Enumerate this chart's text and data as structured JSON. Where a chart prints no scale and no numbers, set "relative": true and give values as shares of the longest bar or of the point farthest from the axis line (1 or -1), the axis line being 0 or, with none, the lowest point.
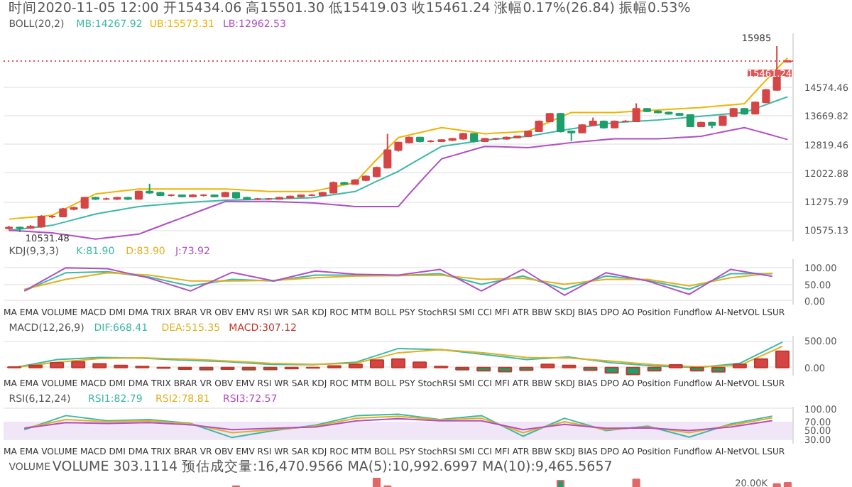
{
  "chart_data": [
    {
      "type": "candlestick",
      "title": "时间2020-11-05 12:00 开15434.06 高15501.30 低15419.03 收15461.24 涨幅0.17%(26.84) 振幅0.53%",
      "subtitle": "BOLL(20,2)",
      "log": "y",
      "grid": "y",
      "tick_labels": "y",
      "categories": [
        null,
        null,
        null,
        null,
        null,
        null,
        null,
        null,
        null,
        null,
        null,
        null,
        null,
        null,
        null,
        null,
        null,
        null,
        null,
        null,
        null,
        null,
        null,
        null,
        null,
        null,
        null,
        null,
        null,
        null,
        null,
        null,
        null,
        null,
        null,
        null,
        null,
        null,
        null,
        null,
        null,
        null,
        null,
        null,
        null,
        null,
        null,
        null,
        null,
        null,
        null,
        null,
        null,
        null,
        null,
        null,
        null,
        null,
        null,
        null,
        null,
        null,
        null,
        null,
        null,
        null,
        null,
        null,
        null,
        null,
        null,
        null,
        null
      ],
      "ohlc": [
        [
          10620,
          10680,
          10590,
          10640
        ],
        [
          10640,
          10660,
          10531.48,
          10634
        ],
        [
          10634,
          10700,
          10610,
          10664
        ],
        [
          10664,
          10940,
          10640,
          10906
        ],
        [
          10906,
          10940,
          10870,
          10906
        ],
        [
          10906,
          11120,
          10890,
          11092
        ],
        [
          11092,
          11150,
          11060,
          11123
        ],
        [
          11123,
          11400,
          11100,
          11377
        ],
        [
          11377,
          11400,
          11320,
          11345
        ],
        [
          11345,
          11380,
          11320,
          11345
        ],
        [
          11345,
          11400,
          11320,
          11377
        ],
        [
          11377,
          11400,
          11320,
          11345
        ],
        [
          11345,
          11560,
          11330,
          11537
        ],
        [
          11537,
          11740,
          11480,
          11504
        ],
        [
          11504,
          11530,
          11420,
          11441
        ],
        [
          11441,
          11470,
          11410,
          11441
        ],
        [
          11441,
          11460,
          11390,
          11409
        ],
        [
          11409,
          11470,
          11390,
          11441
        ],
        [
          11441,
          11470,
          11410,
          11441
        ],
        [
          11441,
          11460,
          11390,
          11409
        ],
        [
          11409,
          11530,
          11390,
          11504
        ],
        [
          11504,
          11520,
          11350,
          11377
        ],
        [
          11377,
          11400,
          11320,
          11345
        ],
        [
          11345,
          11370,
          11320,
          11345
        ],
        [
          11345,
          11370,
          11320,
          11345
        ],
        [
          11345,
          11400,
          11330,
          11377
        ],
        [
          11377,
          11430,
          11360,
          11409
        ],
        [
          11409,
          11460,
          11390,
          11441
        ],
        [
          11441,
          11470,
          11420,
          11441
        ],
        [
          11441,
          11530,
          11420,
          11504
        ],
        [
          11504,
          11800,
          11490,
          11767
        ],
        [
          11767,
          11790,
          11710,
          11734
        ],
        [
          11734,
          11860,
          11720,
          11833
        ],
        [
          11833,
          11960,
          11810,
          11934
        ],
        [
          11934,
          12200,
          11910,
          12171
        ],
        [
          12171,
          13131,
          12150,
          12659
        ],
        [
          12659,
          12900,
          12620,
          12876
        ],
        [
          12876,
          13050,
          12850,
          13021
        ],
        [
          13021,
          13040,
          12880,
          12912
        ],
        [
          12912,
          12950,
          12880,
          12912
        ],
        [
          12912,
          12970,
          12890,
          12948
        ],
        [
          12948,
          13010,
          12920,
          12985
        ],
        [
          12985,
          13160,
          12960,
          13131
        ],
        [
          13131,
          13150,
          12880,
          12912
        ],
        [
          12912,
          13010,
          12890,
          12985
        ],
        [
          12985,
          13010,
          12950,
          12985
        ],
        [
          12985,
          13050,
          12960,
          13021
        ],
        [
          13021,
          13080,
          13000,
          13058
        ],
        [
          13058,
          13230,
          13040,
          13206
        ],
        [
          13206,
          13530,
          13190,
          13505
        ],
        [
          13505,
          13760,
          13480,
          13736
        ],
        [
          13736,
          13760,
          13170,
          13206
        ],
        [
          13206,
          13230,
          12920,
          13168
        ],
        [
          13168,
          13420,
          13150,
          13391
        ],
        [
          13391,
          13620,
          13370,
          13505
        ],
        [
          13505,
          13530,
          13290,
          13317
        ],
        [
          13317,
          13530,
          13300,
          13505
        ],
        [
          13505,
          13540,
          13480,
          13505
        ],
        [
          13505,
          14060,
          13490,
          13890
        ],
        [
          13890,
          13910,
          13790,
          13813
        ],
        [
          13813,
          13840,
          13750,
          13775
        ],
        [
          13775,
          13800,
          13710,
          13736
        ],
        [
          13736,
          13760,
          13670,
          13697
        ],
        [
          13697,
          13720,
          13330,
          13354
        ],
        [
          13354,
          13490,
          13330,
          13467
        ],
        [
          13467,
          13490,
          13300,
          13391
        ],
        [
          13391,
          13680,
          13370,
          13659
        ],
        [
          13659,
          13910,
          13640,
          13890
        ],
        [
          13890,
          13910,
          13710,
          13736
        ],
        [
          13736,
          14120,
          13720,
          14092
        ],
        [
          14092,
          14520,
          14070,
          14490
        ],
        [
          14490,
          15985,
          14470,
          15115
        ],
        [
          15434.06,
          15501.3,
          15419.03,
          15461.24
        ]
      ],
      "colors": [
        "#d64545",
        "#1e9e6a",
        "#d64545",
        "#d64545",
        "#d64545",
        "#d64545",
        "#d64545",
        "#d64545",
        "#1e9e6a",
        "#d64545",
        "#d64545",
        "#1e9e6a",
        "#d64545",
        "#1e9e6a",
        "#1e9e6a",
        "#d64545",
        "#1e9e6a",
        "#d64545",
        "#d64545",
        "#1e9e6a",
        "#d64545",
        "#1e9e6a",
        "#1e9e6a",
        "#d64545",
        "#d64545",
        "#d64545",
        "#d64545",
        "#d64545",
        "#d64545",
        "#d64545",
        "#d64545",
        "#1e9e6a",
        "#d64545",
        "#d64545",
        "#d64545",
        "#d64545",
        "#d64545",
        "#d64545",
        "#1e9e6a",
        "#d64545",
        "#d64545",
        "#d64545",
        "#d64545",
        "#1e9e6a",
        "#d64545",
        "#d64545",
        "#d64545",
        "#d64545",
        "#d64545",
        "#d64545",
        "#d64545",
        "#1e9e6a",
        "#1e9e6a",
        "#d64545",
        "#d64545",
        "#1e9e6a",
        "#d64545",
        "#d64545",
        "#d64545",
        "#1e9e6a",
        "#1e9e6a",
        "#1e9e6a",
        "#1e9e6a",
        "#1e9e6a",
        "#d64545",
        "#1e9e6a",
        "#d64545",
        "#d64545",
        "#1e9e6a",
        "#d64545",
        "#d64545",
        "#d64545",
        "#d64545"
      ],
      "series": [
        {
          "type": "line",
          "name": "MB:14267.92",
          "color": "#3cb9a6",
          "values": [
            10575,
            10605,
            10635,
            10665,
            10695,
            10763,
            10832,
            10900,
            10968,
            11015,
            11062,
            11108,
            11155,
            11179,
            11202,
            11226,
            11249,
            11265,
            11281,
            11297,
            11313,
            11321,
            11329,
            11337,
            11345,
            11353,
            11361,
            11369,
            11377,
            11417,
            11457,
            11497,
            11537,
            11670,
            11803,
            11936,
            12069,
            12244,
            12418,
            12593,
            12767,
            12812,
            12858,
            12903,
            12948,
            12976,
            13003,
            13031,
            13058,
            13113,
            13169,
            13224,
            13279,
            13326,
            13373,
            13420,
            13467,
            13486,
            13506,
            13525,
            13544,
            13573,
            13602,
            13630,
            13659,
            13688,
            13717,
            13746,
            13775,
            13898,
            14021,
            14145,
            14267.92
          ]
        },
        {
          "type": "line",
          "name": "UB:15573.31",
          "color": "#f0b400",
          "values": [
            10845,
            10868,
            10891,
            10914,
            10937,
            11071,
            11205,
            11338,
            11472,
            11505,
            11537,
            11570,
            11603,
            11603,
            11603,
            11603,
            11603,
            11603,
            11603,
            11603,
            11603,
            11587,
            11570,
            11554,
            11537,
            11537,
            11537,
            11537,
            11537,
            11595,
            11652,
            11710,
            11767,
            12081,
            12394,
            12708,
            13021,
            13095,
            13169,
            13243,
            13317,
            13271,
            13224,
            13178,
            13131,
            13150,
            13169,
            13187,
            13206,
            13348,
            13491,
            13633,
            13775,
            13775,
            13775,
            13775,
            13775,
            13794,
            13814,
            13833,
            13852,
            13872,
            13891,
            13911,
            13930,
            13960,
            13990,
            14019,
            14049,
            14430,
            14811,
            15192,
            15573.31
          ]
        },
        {
          "type": "line",
          "name": "LB:12962.53",
          "color": "#b04fc4",
          "values": [
            10575,
            10560,
            10545,
            10530,
            10515,
            10479,
            10443,
            10406,
            10370,
            10399,
            10428,
            10456,
            10485,
            10583,
            10680,
            10778,
            10875,
            10977,
            11078,
            11180,
            11281,
            11281,
            11281,
            11281,
            11281,
            11273,
            11265,
            11257,
            11249,
            11226,
            11202,
            11179,
            11155,
            11155,
            11155,
            11155,
            11155,
            11470,
            11784,
            12099,
            12413,
            12502,
            12590,
            12679,
            12767,
            12758,
            12749,
            12740,
            12731,
            12767,
            12803,
            12839,
            12875,
            12903,
            12930,
            12958,
            12985,
            12985,
            12985,
            12985,
            12985,
            13003,
            13022,
            13040,
            13058,
            13123,
            13188,
            13252,
            13317,
            13228,
            13140,
            13051,
            12962.53
          ]
        }
      ],
      "ylim": [
        10300,
        16450
      ],
      "yticks": [
        {
          "value": 10575.13,
          "label": "10575.13"
        },
        {
          "value": 11275.79,
          "label": "11275.79"
        },
        {
          "value": 12022.88,
          "label": "12022.88"
        },
        {
          "value": 12819.46,
          "label": "12819.46"
        },
        {
          "value": 13669.82,
          "label": "13669.82"
        },
        {
          "value": 14574.46,
          "label": "14574.46"
        }
      ],
      "ref_lines": [
        {
          "axis": "y",
          "value": 15461.24,
          "label": "15461.24",
          "color": "#e05555",
          "line_style": "dotted"
        }
      ],
      "annotations": [
        "15985",
        "10531.48"
      ]
    },
    {
      "type": "line",
      "title": "KDJ(9,3,3)",
      "xlabel": "MA EMA VOLUME MACD DMI DMA TRIX BRAR VR OBV EMV RSI WR SAR KDJ ROC MTM BOLL PSY StochRSI SMI CCI MFI ATR BBW SKDJ BIAS DPO AO Position Fundflow AI-NetVOL LSUR",
      "grid": "y",
      "tick_labels": "y",
      "ylim": [
        -11,
        126
      ],
      "categories": [
        null,
        null,
        null,
        null,
        null,
        null,
        null,
        null,
        null,
        null,
        null,
        null,
        null,
        null,
        null,
        null,
        null,
        null,
        null
      ],
      "yticks": [
        {
          "value": 0,
          "label": "0.00"
        },
        {
          "value": 50,
          "label": "50.00"
        },
        {
          "value": 100,
          "label": "100.00"
        }
      ],
      "series": [
        {
          "name": "K:81.90",
          "color": "#3cb9a6",
          "values": [
            30,
            85,
            88,
            72,
            45,
            65,
            60,
            78,
            78,
            76,
            82,
            50,
            75,
            35,
            75,
            62,
            35,
            82,
            81.9
          ]
        },
        {
          "name": "D:83.90",
          "color": "#e0b020",
          "values": [
            35,
            65,
            85,
            78,
            60,
            60,
            62,
            70,
            75,
            76,
            78,
            65,
            68,
            50,
            65,
            65,
            45,
            70,
            83.9
          ]
        },
        {
          "name": "J:73.92",
          "color": "#b04fc4",
          "values": [
            30,
            100,
            97,
            69,
            30,
            86,
            60,
            90,
            80,
            78,
            95,
            30,
            95,
            17,
            85,
            60,
            20,
            95,
            73.92
          ]
        }
      ]
    },
    {
      "type": "bar",
      "title": "MACD(12,26,9)",
      "xlabel": "MA EMA VOLUME MACD DMI DMA TRIX BRAR VR OBV EMV RSI WR SAR KDJ ROC MTM BOLL PSY StochRSI SMI CCI MFI ATR BBW SKDJ BIAS DPO AO Position Fundflow AI-NetVOL LSUR",
      "grid": "y",
      "tick_labels": "y",
      "ylim": [
        -150,
        600
      ],
      "categories": [
        null,
        null,
        null,
        null,
        null,
        null,
        null,
        null,
        null,
        null,
        null,
        null,
        null,
        null,
        null,
        null,
        null,
        null,
        null,
        null,
        null,
        null,
        null,
        null,
        null,
        null,
        null,
        null,
        null,
        null,
        null,
        null,
        null,
        null,
        null,
        null,
        null
      ],
      "yticks": [
        {
          "value": 0,
          "label": "0.00"
        },
        {
          "value": 500,
          "label": "500.00"
        }
      ],
      "series": [
        {
          "type": "line",
          "name": "DIF:668.41",
          "color": "#3cb9a6",
          "values": [
            0,
            75,
            150,
            170,
            190,
            184,
            177,
            159,
            140,
            125,
            110,
            85,
            60,
            58,
            55,
            78,
            100,
            230,
            360,
            350,
            340,
            295,
            250,
            201,
            152,
            176,
            200,
            145,
            90,
            61,
            31,
            16,
            0,
            40,
            80,
            280,
            480
          ]
        },
        {
          "type": "line",
          "name": "DEA:515.35",
          "color": "#e0b020",
          "values": [
            0,
            50,
            100,
            135,
            170,
            178,
            185,
            173,
            160,
            143,
            125,
            103,
            80,
            70,
            60,
            70,
            80,
            180,
            280,
            310,
            340,
            310,
            280,
            235,
            190,
            185,
            180,
            150,
            120,
            88,
            55,
            35,
            15,
            28,
            40,
            220,
            400
          ]
        },
        {
          "name": "MACD:307.12",
          "color": "#c0392b",
          "values": [
            10,
            40,
            90,
            110,
            70,
            40,
            20,
            -10,
            -30,
            -40,
            -30,
            -40,
            -35,
            -20,
            -5,
            30,
            60,
            140,
            160,
            100,
            20,
            -40,
            -60,
            -75,
            -50,
            60,
            40,
            -50,
            -100,
            -130,
            -60,
            50,
            -60,
            -80,
            60,
            160,
            307.12
          ],
          "colors": [
            "#d64545",
            "#d64545",
            "#d64545",
            "#d64545",
            "#d64545",
            "#d64545",
            "#d64545",
            "#1e9e6a",
            "#1e9e6a",
            "#1e9e6a",
            "#1e9e6a",
            "#1e9e6a",
            "#1e9e6a",
            "#1e9e6a",
            "#1e9e6a",
            "#d64545",
            "#d64545",
            "#d64545",
            "#d64545",
            "#d64545",
            "#d64545",
            "#1e9e6a",
            "#1e9e6a",
            "#1e9e6a",
            "#1e9e6a",
            "#d64545",
            "#d64545",
            "#1e9e6a",
            "#1e9e6a",
            "#1e9e6a",
            "#1e9e6a",
            "#d64545",
            "#1e9e6a",
            "#1e9e6a",
            "#d64545",
            "#d64545",
            "#d64545"
          ]
        }
      ]
    },
    {
      "type": "line",
      "title": "RSI(6,12,24)",
      "xlabel": "MA EMA VOLUME MACD DMI DMA TRIX BRAR VR OBV EMV RSI WR SAR KDJ ROC MTM BOLL PSY StochRSI SMI CCI MFI ATR BBW SKDJ BIAS DPO AO Position Fundflow AI-NetVOL LSUR",
      "grid": "y",
      "tick_labels": "y",
      "ylim": [
        20,
        104
      ],
      "categories": [
        null,
        null,
        null,
        null,
        null,
        null,
        null,
        null,
        null,
        null,
        null,
        null,
        null,
        null,
        null,
        null,
        null,
        null,
        null
      ],
      "yticks": [
        {
          "value": 30,
          "label": "30.00"
        },
        {
          "value": 50,
          "label": "50.00"
        },
        {
          "value": 70,
          "label": "70.00"
        },
        {
          "value": 100,
          "label": "100.00"
        }
      ],
      "bands": [
        {
          "axis": "y",
          "from": 30,
          "to": 70,
          "color": "#f1e6f8"
        }
      ],
      "series": [
        {
          "name": "RSI1:82.79",
          "color": "#3cb9a6",
          "values": [
            52,
            84,
            72,
            75,
            66,
            34,
            50,
            62,
            84,
            87,
            75,
            84,
            37,
            78,
            50,
            60,
            35,
            65,
            82.79
          ]
        },
        {
          "name": "RSI2:78.81",
          "color": "#e0b020",
          "values": [
            55,
            75,
            70,
            72,
            65,
            45,
            52,
            60,
            78,
            82,
            74,
            78,
            45,
            70,
            52,
            58,
            45,
            62,
            78.81
          ]
        },
        {
          "name": "RSI3:72.57",
          "color": "#b04fc4",
          "values": [
            55,
            68,
            66,
            68,
            63,
            52,
            55,
            58,
            72,
            77,
            72,
            72,
            52,
            64,
            55,
            56,
            50,
            58,
            72.57
          ]
        }
      ]
    },
    {
      "type": "bar",
      "title": "VOLUME",
      "subtitle": "VOLUME 303.1114 预估成交量:16,470.9566 MA(5):10,992.6997 MA(10):9,465.5657",
      "relative": true,
      "tick_labels": false,
      "categories": [
        null,
        null,
        null,
        null,
        null,
        null,
        null,
        null,
        null,
        null,
        null,
        null,
        null,
        null,
        null,
        null,
        null,
        null,
        null,
        null,
        null,
        null,
        null,
        null,
        null,
        null,
        null,
        null,
        null,
        null,
        null,
        null,
        null,
        null,
        null,
        null,
        null,
        null,
        null,
        null,
        null,
        null,
        null,
        null,
        null,
        null,
        null,
        null,
        null,
        null,
        null,
        null,
        null,
        null,
        null,
        null,
        null,
        null,
        null,
        null,
        null,
        null,
        null,
        null,
        null,
        null,
        null,
        null,
        null,
        null,
        null,
        null,
        null
      ],
      "annotations": [
        "20.00K"
      ],
      "series": [
        {
          "color": "#e06868",
          "values": [
            null,
            null,
            null,
            null,
            null,
            null,
            null,
            null,
            null,
            null,
            null,
            null,
            null,
            null,
            null,
            null,
            null,
            null,
            null,
            null,
            null,
            0.35,
            null,
            null,
            null,
            null,
            null,
            null,
            null,
            null,
            null,
            null,
            null,
            null,
            1,
            0.35,
            null,
            null,
            null,
            null,
            null,
            null,
            null,
            null,
            null,
            null,
            null,
            null,
            null,
            null,
            null,
            0.78,
            null,
            null,
            null,
            null,
            null,
            null,
            0.87,
            null,
            null,
            null,
            null,
            null,
            null,
            null,
            null,
            null,
            null,
            null,
            null,
            0.52,
            0.61
          ],
          "colors": [
            "#e06868",
            "#e06868",
            "#e06868",
            "#e06868",
            "#e06868",
            "#e06868",
            "#e06868",
            "#e06868",
            "#e06868",
            "#e06868",
            "#e06868",
            "#e06868",
            "#e06868",
            "#e06868",
            "#e06868",
            "#e06868",
            "#e06868",
            "#e06868",
            "#e06868",
            "#e06868",
            "#e06868",
            "#1e9e6a",
            "#e06868",
            "#e06868",
            "#e06868",
            "#e06868",
            "#e06868",
            "#e06868",
            "#e06868",
            "#e06868",
            "#e06868",
            "#e06868",
            "#e06868",
            "#e06868",
            "#e06868",
            "#e06868",
            "#e06868",
            "#e06868",
            "#e06868",
            "#e06868",
            "#e06868",
            "#e06868",
            "#e06868",
            "#e06868",
            "#e06868",
            "#e06868",
            "#e06868",
            "#e06868",
            "#e06868",
            "#e06868",
            "#e06868",
            "#1e9e6a",
            "#e06868",
            "#e06868",
            "#e06868",
            "#e06868",
            "#e06868",
            "#e06868",
            "#e06868",
            "#e06868",
            "#e06868",
            "#e06868",
            "#e06868",
            "#e06868",
            "#e06868",
            "#e06868",
            "#e06868",
            "#e06868",
            "#e06868",
            "#e06868",
            "#e06868",
            "#e06868",
            "#e06868"
          ]
        }
      ]
    }
  ]
}
